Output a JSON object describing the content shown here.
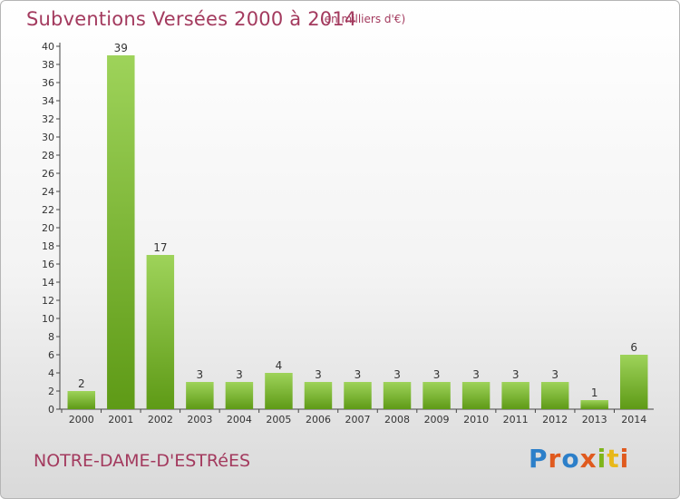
{
  "header": {
    "title": "Subventions Versées 2000 à 2014",
    "unit": "(en milliers d'€)"
  },
  "footer": {
    "commune": "NOTRE-DAME-D'ESTRéES",
    "logo_text": "Proxiti",
    "logo_colors": [
      "#2c7fc9",
      "#e05a1e",
      "#2c7fc9",
      "#e05a1e",
      "#7fb51a",
      "#e8b81a",
      "#e05a1e"
    ]
  },
  "colors": {
    "bar_light": "#9ed35a",
    "bar_dark": "#5e9a16",
    "title": "#a33a5e"
  },
  "chart_data": {
    "type": "bar",
    "title": "Subventions Versées 2000 à 2014",
    "subtitle": "(en milliers d'€)",
    "xlabel": "",
    "ylabel": "",
    "categories": [
      "2000",
      "2001",
      "2002",
      "2003",
      "2004",
      "2005",
      "2006",
      "2007",
      "2008",
      "2009",
      "2010",
      "2011",
      "2012",
      "2013",
      "2014"
    ],
    "values": [
      2,
      39,
      17,
      3,
      3,
      4,
      3,
      3,
      3,
      3,
      3,
      3,
      3,
      1,
      6
    ],
    "ylim": [
      0,
      40
    ],
    "yticks": [
      0,
      2,
      4,
      6,
      8,
      10,
      12,
      14,
      16,
      18,
      20,
      22,
      24,
      26,
      28,
      30,
      32,
      34,
      36,
      38,
      40
    ],
    "grid": false,
    "legend": "none"
  }
}
